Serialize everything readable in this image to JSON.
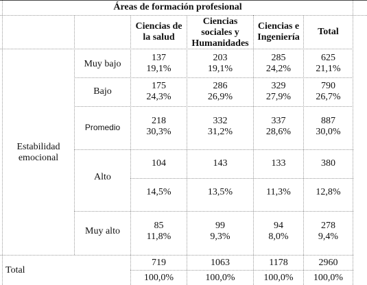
{
  "title": "Áreas de formación profesional",
  "columns": [
    {
      "label": "Ciencias de la salud"
    },
    {
      "label": "Ciencias sociales y Humanidades"
    },
    {
      "label": "Ciencias e Ingeniería"
    },
    {
      "label": "Total"
    }
  ],
  "group_label": "Estabilidad emocional",
  "rows": [
    {
      "label": "Muy bajo",
      "cells": [
        [
          "137",
          "19,1%"
        ],
        [
          "203",
          "19,1%"
        ],
        [
          "285",
          "24,2%"
        ],
        [
          "625",
          "21,1%"
        ]
      ]
    },
    {
      "label": "Bajo",
      "cells": [
        [
          "175",
          "24,3%"
        ],
        [
          "286",
          "26,9%"
        ],
        [
          "329",
          "27,9%"
        ],
        [
          "790",
          "26,7%"
        ]
      ]
    },
    {
      "label": "Promedio",
      "cells": [
        [
          "218",
          "30,3%"
        ],
        [
          "332",
          "31,2%"
        ],
        [
          "337",
          "28,6%"
        ],
        [
          "887",
          "30,0%"
        ]
      ]
    },
    {
      "label": "Alto",
      "cells": [
        [
          "104",
          "14,5%"
        ],
        [
          "143",
          "13,5%"
        ],
        [
          "133",
          "11,3%"
        ],
        [
          "380",
          "12,8%"
        ]
      ]
    },
    {
      "label": "Muy alto",
      "cells": [
        [
          "85",
          "11,8%"
        ],
        [
          "99",
          "9,3%"
        ],
        [
          "94",
          "8,0%"
        ],
        [
          "278",
          "9,4%"
        ]
      ]
    }
  ],
  "total": {
    "label": "Total",
    "cells": [
      [
        "719",
        "100,0%"
      ],
      [
        "1063",
        "100,0%"
      ],
      [
        "1178",
        "100,0%"
      ],
      [
        "2960",
        "100,0%"
      ]
    ]
  }
}
